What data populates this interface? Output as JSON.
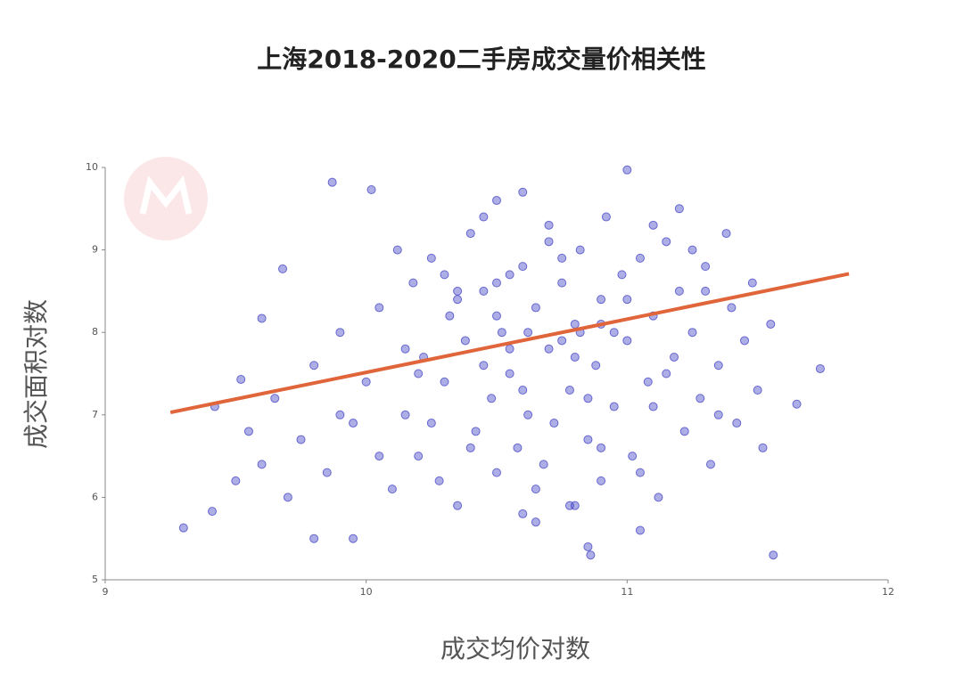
{
  "chart_data": {
    "type": "scatter",
    "title": "上海2018-2020二手房成交量价相关性",
    "x_label": "成交均价对数",
    "y_label": "成交面积对数",
    "xlim": [
      9,
      12
    ],
    "ylim": [
      5,
      10
    ],
    "xticks": [
      9,
      10,
      11,
      12
    ],
    "yticks": [
      5,
      6,
      7,
      8,
      9,
      10
    ],
    "series": [
      {
        "type": "scatter",
        "color": "#4b4bc8",
        "x": [
          9.3,
          11.56,
          11.74,
          10.86,
          9.87,
          11.0,
          9.6,
          9.68,
          10.02,
          11.65,
          9.41,
          9.42,
          9.52,
          9.5,
          9.55,
          9.6,
          9.65,
          9.7,
          9.75,
          9.8,
          9.85,
          9.9,
          9.95,
          10.0,
          10.05,
          10.1,
          10.12,
          10.15,
          10.18,
          10.2,
          10.22,
          10.25,
          10.28,
          10.3,
          10.32,
          10.35,
          10.38,
          10.4,
          10.42,
          10.45,
          10.48,
          10.5,
          10.5,
          10.52,
          10.55,
          10.58,
          10.6,
          10.6,
          10.62,
          10.65,
          10.68,
          10.7,
          10.7,
          10.72,
          10.75,
          10.78,
          10.8,
          10.8,
          10.82,
          10.85,
          10.88,
          10.9,
          10.9,
          10.92,
          10.95,
          10.98,
          11.0,
          11.02,
          11.05,
          11.08,
          11.1,
          11.12,
          11.15,
          11.18,
          11.2,
          11.22,
          11.25,
          11.28,
          11.3,
          11.32,
          11.35,
          11.38,
          11.4,
          11.42,
          11.45,
          11.48,
          11.5,
          11.52,
          11.55,
          10.15,
          10.25,
          10.35,
          10.45,
          10.55,
          10.65,
          10.75,
          10.85,
          10.95,
          11.05,
          11.15,
          11.25,
          11.35,
          10.3,
          10.4,
          10.5,
          10.6,
          10.7,
          10.8,
          10.9,
          11.0,
          11.1,
          11.2,
          10.2,
          10.45,
          10.65,
          10.85,
          11.05,
          11.3,
          9.8,
          9.9,
          10.05,
          10.6,
          10.9,
          10.55,
          10.75,
          10.35,
          11.1,
          9.95,
          10.62,
          10.78,
          10.5,
          10.82
        ],
        "y": [
          5.63,
          5.3,
          7.56,
          5.3,
          9.82,
          9.97,
          8.17,
          8.77,
          9.73,
          7.13,
          5.83,
          7.1,
          7.43,
          6.2,
          6.8,
          6.4,
          7.2,
          6.0,
          6.7,
          7.6,
          6.3,
          8.0,
          6.9,
          7.4,
          8.3,
          6.1,
          9.0,
          7.0,
          8.6,
          6.5,
          7.7,
          8.9,
          6.2,
          7.4,
          8.2,
          5.9,
          7.9,
          9.2,
          6.8,
          8.5,
          7.2,
          6.3,
          9.6,
          8.0,
          7.5,
          6.6,
          8.8,
          5.8,
          7.0,
          8.3,
          6.4,
          7.8,
          9.3,
          6.9,
          8.6,
          7.3,
          8.1,
          5.9,
          9.0,
          6.7,
          7.6,
          8.4,
          6.2,
          9.4,
          7.1,
          8.7,
          7.9,
          6.5,
          8.9,
          7.4,
          8.2,
          6.0,
          9.1,
          7.7,
          8.5,
          6.8,
          8.0,
          7.2,
          8.8,
          6.4,
          7.6,
          9.2,
          8.3,
          6.9,
          7.9,
          8.6,
          7.3,
          6.6,
          8.1,
          7.8,
          6.9,
          8.4,
          7.6,
          8.7,
          6.1,
          8.9,
          7.2,
          8.0,
          6.3,
          7.5,
          9.0,
          7.0,
          8.7,
          6.6,
          8.2,
          7.3,
          9.1,
          7.7,
          6.6,
          8.4,
          7.1,
          9.5,
          7.5,
          9.4,
          5.7,
          5.4,
          5.6,
          8.5,
          5.5,
          7.0,
          6.5,
          9.7,
          8.1,
          7.8,
          7.9,
          8.5,
          9.3,
          5.5,
          8.0,
          5.9,
          8.6,
          8.0
        ]
      },
      {
        "type": "line",
        "color": "#e0653a",
        "x": [
          9.25,
          11.85
        ],
        "y": [
          7.03,
          8.71
        ]
      }
    ]
  }
}
